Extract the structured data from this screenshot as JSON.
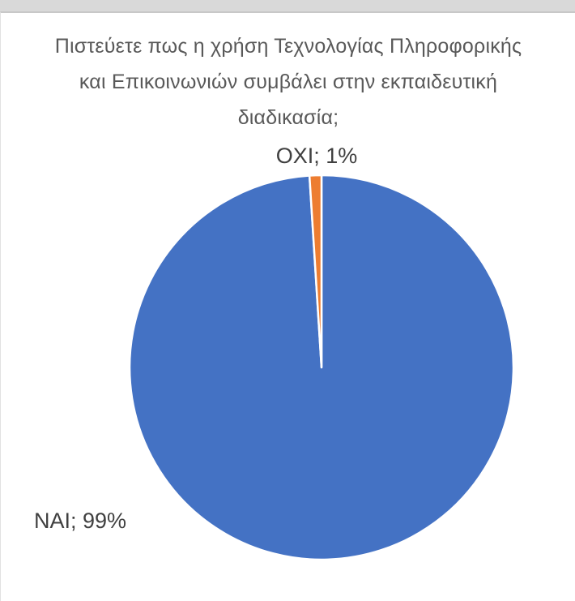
{
  "chart_data": {
    "type": "pie",
    "title": "Πιστεύετε πως η χρήση Τεχνολογίας Πληροφορικής και Επικοινωνιών συμβάλει στην εκπαιδευτική διαδικασία;",
    "categories": [
      "ΝΑΙ",
      "ΟΧΙ"
    ],
    "values": [
      99,
      1
    ],
    "data_labels": [
      "ΝΑΙ; 99%",
      "ΟΧΙ; 1%"
    ],
    "colors": [
      "#4472C4",
      "#ED7D31"
    ],
    "slice_border_color": "#FFFFFF",
    "legend": "none"
  }
}
